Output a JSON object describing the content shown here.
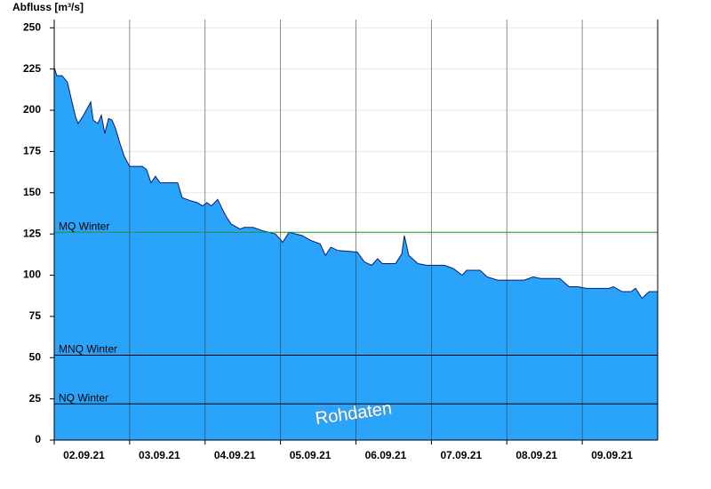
{
  "chart_data": {
    "type": "area",
    "y_label": "Abfluss [m³/s]",
    "watermark": "Rohdaten",
    "color": "#2aa4fa",
    "line_color": "#0a1a6e",
    "x": [
      0,
      0.8,
      2.5,
      4.2,
      5.4,
      6.8,
      7.6,
      9,
      10.5,
      11.6,
      12.4,
      13.9,
      15,
      16.1,
      17.3,
      18.4,
      19.5,
      20.9,
      22.3,
      24,
      28,
      29.4,
      30.8,
      32.2,
      33.7,
      39.3,
      40.7,
      43.6,
      45.5,
      47.2,
      48.6,
      50,
      52,
      53.5,
      54.9,
      56.3,
      59.1,
      60.5,
      63.3,
      66.2,
      70.4,
      72.7,
      74.7,
      78.9,
      81.7,
      84.6,
      86.3,
      88,
      90.2,
      96.4,
      98.7,
      101,
      102.9,
      104.4,
      108.6,
      110.6,
      111.4,
      112.8,
      115.7,
      118.5,
      124.2,
      127,
      129.8,
      131.2,
      135.5,
      137.7,
      141.1,
      149.6,
      152.4,
      154.7,
      160.9,
      163.8,
      166.6,
      169.4,
      176.5,
      177.9,
      180.7,
      183.5,
      185,
      187,
      189.3,
      192
    ],
    "values": [
      226,
      221,
      221,
      217,
      207,
      196,
      192,
      196,
      201,
      205,
      194,
      192,
      197,
      186,
      195,
      194,
      189,
      180,
      172,
      166,
      166,
      164,
      156,
      160,
      156,
      156,
      147,
      145,
      144,
      142,
      144,
      142,
      146,
      140,
      135,
      131,
      128,
      129,
      129,
      127,
      125,
      120,
      126,
      124,
      121,
      119,
      112,
      117,
      115,
      114,
      108,
      106,
      110,
      107,
      107,
      113,
      124,
      112,
      107,
      106,
      106,
      104,
      100,
      103,
      103,
      99,
      97,
      97,
      99,
      98,
      98,
      93,
      93,
      92,
      92,
      93,
      90,
      90,
      92,
      86,
      90,
      90
    ],
    "xlim": [
      0,
      192
    ],
    "xticks": [
      {
        "value": 0,
        "label": "02.09.21"
      },
      {
        "value": 24,
        "label": "03.09.21"
      },
      {
        "value": 48,
        "label": "04.09.21"
      },
      {
        "value": 72,
        "label": "05.09.21"
      },
      {
        "value": 96,
        "label": "06.09.21"
      },
      {
        "value": 120,
        "label": "07.09.21"
      },
      {
        "value": 144,
        "label": "08.09.21"
      },
      {
        "value": 168,
        "label": "09.09.21"
      }
    ],
    "ylim": [
      0,
      255
    ],
    "yticks": [
      0,
      25,
      50,
      75,
      100,
      125,
      150,
      175,
      200,
      225,
      250
    ],
    "grid": true,
    "reference_lines": [
      {
        "name": "MQ Winter",
        "value": 126,
        "color": "#2e8b2e"
      },
      {
        "name": "MNQ Winter",
        "value": 51.5,
        "color": "#000000"
      },
      {
        "name": "NQ Winter",
        "value": 22,
        "color": "#000000"
      }
    ]
  }
}
